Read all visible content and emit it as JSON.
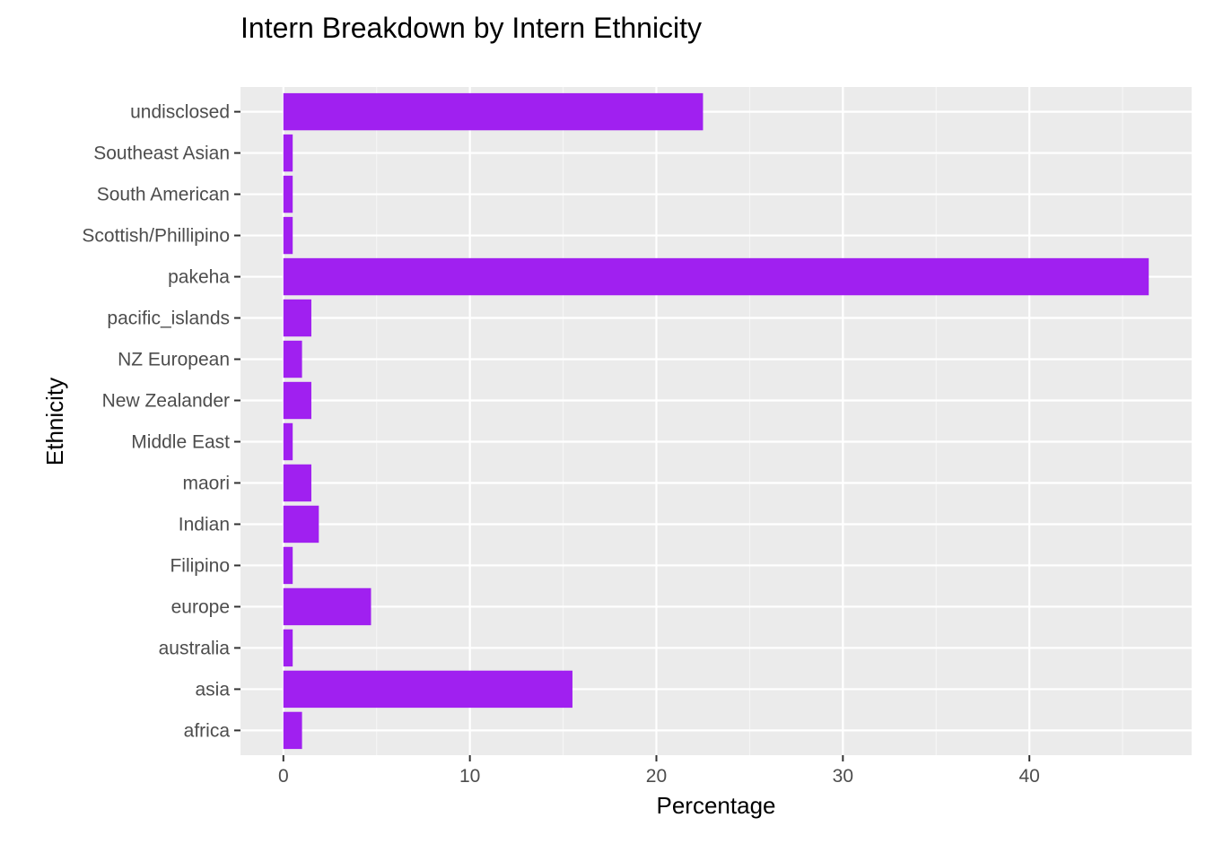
{
  "chart_data": {
    "type": "bar",
    "orientation": "horizontal",
    "title": "Intern Breakdown by Intern Ethnicity",
    "xlabel": "Percentage",
    "ylabel": "Ethnicity",
    "categories": [
      "africa",
      "asia",
      "australia",
      "europe",
      "Filipino",
      "Indian",
      "maori",
      "Middle East",
      "New Zealander",
      "NZ European",
      "pacific_islands",
      "pakeha",
      "Scottish/Phillipino",
      "South American",
      "Southeast Asian",
      "undisclosed"
    ],
    "values": [
      1.0,
      15.5,
      0.5,
      4.7,
      0.5,
      1.9,
      1.5,
      0.5,
      1.5,
      1.0,
      1.5,
      46.4,
      0.5,
      0.5,
      0.5,
      22.5
    ],
    "xlim": [
      -2.3,
      48.7
    ],
    "xticks": [
      0,
      10,
      20,
      30,
      40
    ],
    "xtick_labels": [
      "0",
      "10",
      "20",
      "30",
      "40"
    ],
    "grid": true,
    "legend": "none",
    "colors": {
      "bar": "#A020F0",
      "panel": "#EBEBEB",
      "grid_major": "#FFFFFF",
      "grid_minor": "#F5F5F5",
      "tick": "#333333",
      "tick_label": "#4D4D4D"
    }
  }
}
